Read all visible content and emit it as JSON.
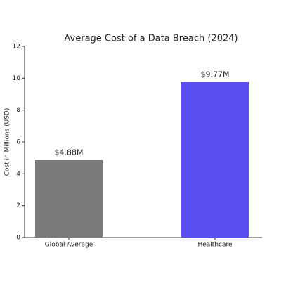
{
  "chart_data": {
    "type": "bar",
    "title": "Average Cost of a Data Breach (2024)",
    "y_label": "Cost in Millions (USD)",
    "categories": [
      "Global Average",
      "Healthcare"
    ],
    "values": [
      4.88,
      9.77
    ],
    "value_labels": [
      "$4.88M",
      "$9.77M"
    ],
    "colors": [
      "#7a7a7a",
      "#5b4ef0"
    ],
    "ylim": [
      0,
      12
    ],
    "yticks": [
      0,
      2,
      4,
      6,
      8,
      10,
      12
    ],
    "grid": false
  }
}
